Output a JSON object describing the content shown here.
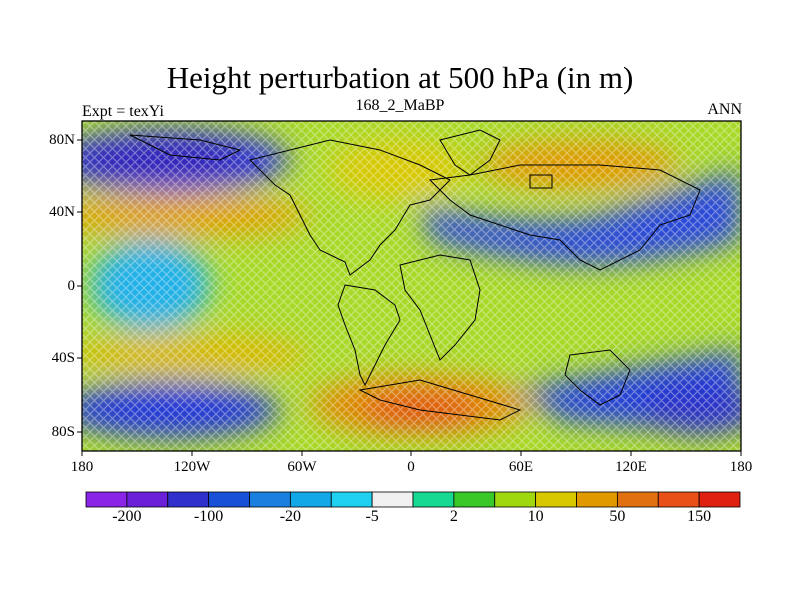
{
  "title": "Height perturbation at 500 hPa (in m)",
  "subtitle_left": "Expt = texYi",
  "subtitle_center": "168_2_MaBP",
  "subtitle_right": "ANN",
  "lat_labels": [
    "80N",
    "40N",
    "0",
    "40S",
    "80S"
  ],
  "lon_labels": [
    "180",
    "120W",
    "60W",
    "0",
    "60E",
    "120E",
    "180"
  ],
  "colorbar": {
    "colors": [
      "#8a24e6",
      "#6a20d8",
      "#3030cc",
      "#1850d8",
      "#1a80e0",
      "#12a8e8",
      "#20d0f0",
      "#f0f0f0",
      "#16d890",
      "#38c828",
      "#a0d810",
      "#d8c800",
      "#e09a00",
      "#e07010",
      "#e85018",
      "#e02010"
    ],
    "labels": [
      "-200",
      "-100",
      "-20",
      "-5",
      "2",
      "10",
      "50",
      "150"
    ]
  },
  "colors": {
    "strong_negative": "#2a30d8",
    "negative": "#1a80e0",
    "neutral": "#a8d828",
    "positive": "#e0a000",
    "strong_positive": "#e04818",
    "coastline": "#000000"
  }
}
